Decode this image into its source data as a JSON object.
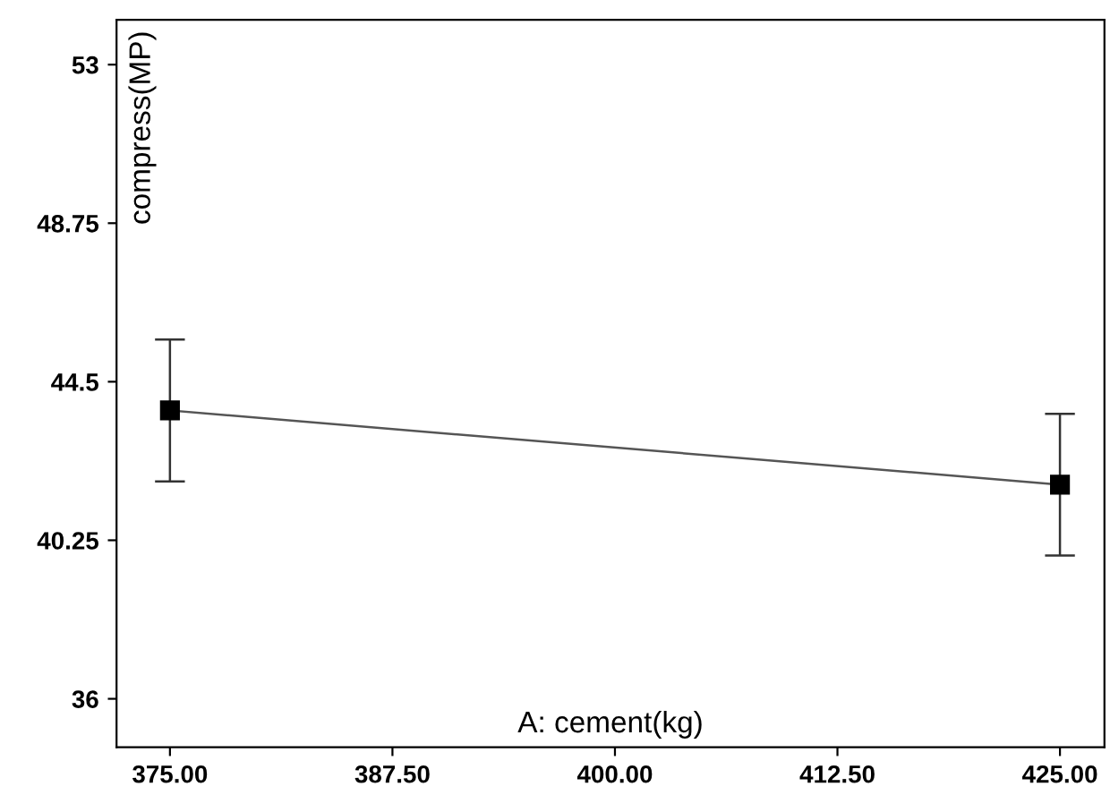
{
  "chart_data": {
    "type": "line",
    "xlabel": "A: cement(kg)",
    "ylabel": "compress(MP)",
    "series": [
      {
        "x": [
          375,
          425
        ],
        "values": [
          43.73,
          41.74
        ],
        "errors": [
          1.9,
          1.9
        ],
        "color": "#000000"
      }
    ],
    "xlim": [
      372,
      427.5
    ],
    "ylim": [
      34.7,
      54.2
    ],
    "xticks": [
      {
        "value": 375,
        "label": "375.00"
      },
      {
        "value": 387.5,
        "label": "387.50"
      },
      {
        "value": 400,
        "label": "400.00"
      },
      {
        "value": 412.5,
        "label": "412.50"
      },
      {
        "value": 425,
        "label": "425.00"
      }
    ],
    "yticks": [
      36,
      40.25,
      44.5,
      48.75,
      53
    ],
    "marker": "square",
    "line_style": "solid",
    "grid": false
  }
}
